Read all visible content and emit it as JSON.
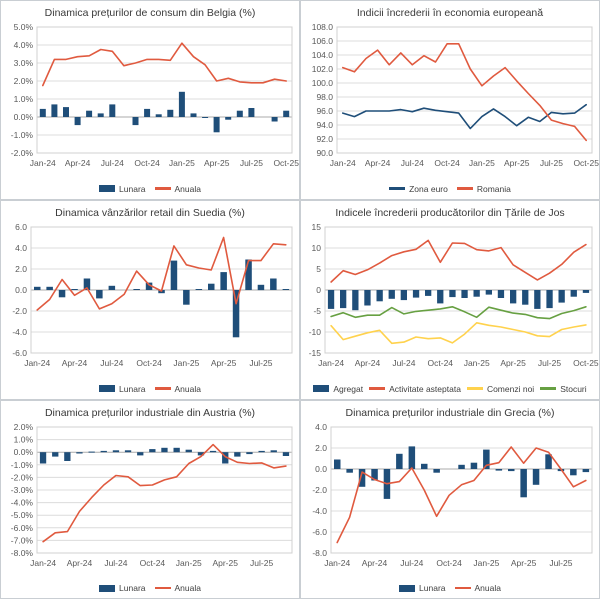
{
  "page": {
    "background": "#ffffff"
  },
  "colors": {
    "bar_blue": "#1F4E79",
    "line_orange": "#E05A3F",
    "line_yellow": "#FFD24D",
    "line_green": "#67A042",
    "line_navy": "#1F4E79",
    "grid": "#DCDCDC",
    "zero_line": "#ABABAB",
    "plot_border": "#D0D0D0",
    "axis_text": "#595959",
    "title_text": "#3A3A3A"
  },
  "chart_data": [
    {
      "type": "bar",
      "title": "Dinamica prețurilor de consum din Belgia (%)",
      "categories": [
        "Jan-24",
        "Feb-24",
        "Mar-24",
        "Apr-24",
        "May-24",
        "Jun-24",
        "Jul-24",
        "Aug-24",
        "Sep-24",
        "Oct-24",
        "Nov-24",
        "Dec-24",
        "Jan-25",
        "Feb-25",
        "Mar-25",
        "Apr-25",
        "May-25",
        "Jun-25",
        "Jul-25",
        "Aug-25",
        "Sep-25",
        "Oct-25"
      ],
      "xticks_every": 3,
      "ylim": [
        -2,
        5
      ],
      "ystep": 1,
      "yfmt": "pct1",
      "ylabel_width": 28,
      "grid": true,
      "legend_position": "bottom",
      "series": [
        {
          "name": "Lunara",
          "type": "bar",
          "color_key": "bar_blue",
          "values": [
            0.45,
            0.7,
            0.55,
            -0.45,
            0.35,
            0.2,
            0.7,
            0.0,
            -0.45,
            0.45,
            0.15,
            0.4,
            1.4,
            0.2,
            -0.05,
            -0.85,
            -0.15,
            0.35,
            0.5,
            0.0,
            -0.25,
            0.35
          ]
        },
        {
          "name": "Anuala",
          "type": "line",
          "color_key": "line_orange",
          "values": [
            1.75,
            3.2,
            3.2,
            3.35,
            3.4,
            3.75,
            3.65,
            2.85,
            3.0,
            3.2,
            3.2,
            3.15,
            4.1,
            3.35,
            2.9,
            2.0,
            2.15,
            1.95,
            1.9,
            1.9,
            2.1,
            2.0
          ]
        }
      ]
    },
    {
      "type": "line",
      "title": "Indicii încrederii în economia europeană",
      "categories": [
        "Jan-24",
        "Feb-24",
        "Mar-24",
        "Apr-24",
        "May-24",
        "Jun-24",
        "Jul-24",
        "Aug-24",
        "Sep-24",
        "Oct-24",
        "Nov-24",
        "Dec-24",
        "Jan-25",
        "Feb-25",
        "Mar-25",
        "Apr-25",
        "May-25",
        "Jun-25",
        "Jul-25",
        "Aug-25",
        "Sep-25",
        "Oct-25"
      ],
      "xticks_every": 3,
      "ylim": [
        90,
        108
      ],
      "ystep": 2,
      "yfmt": "dec1",
      "ylabel_width": 28,
      "grid": true,
      "legend_position": "bottom",
      "series": [
        {
          "name": "Zona euro",
          "type": "line",
          "color_key": "line_navy",
          "values": [
            95.7,
            95.2,
            96.0,
            96.0,
            96.0,
            96.2,
            95.9,
            96.4,
            96.1,
            95.9,
            95.7,
            93.5,
            95.2,
            96.3,
            95.2,
            93.9,
            95.1,
            94.5,
            95.8,
            95.6,
            95.7,
            96.9
          ]
        },
        {
          "name": "Romania",
          "type": "line",
          "color_key": "line_orange",
          "values": [
            102.2,
            101.6,
            103.5,
            104.7,
            102.6,
            104.3,
            102.6,
            103.9,
            103.0,
            105.6,
            105.6,
            102.0,
            99.6,
            101.0,
            102.2,
            100.3,
            98.5,
            96.8,
            94.7,
            94.2,
            93.8,
            91.8
          ]
        }
      ]
    },
    {
      "type": "bar",
      "title": "Dinamica vânzărilor retail din Suedia (%)",
      "categories": [
        "Jan-24",
        "Feb-24",
        "Mar-24",
        "Apr-24",
        "May-24",
        "Jun-24",
        "Jul-24",
        "Aug-24",
        "Sep-24",
        "Oct-24",
        "Nov-24",
        "Dec-24",
        "Jan-25",
        "Feb-25",
        "Mar-25",
        "Apr-25",
        "May-25",
        "Jun-25",
        "Jul-25",
        "Aug-25",
        "Sep-25"
      ],
      "xticks_every": 3,
      "ylim": [
        -6,
        6
      ],
      "ystep": 2,
      "yfmt": "dec1",
      "ylabel_width": 22,
      "grid": true,
      "legend_position": "bottom",
      "series": [
        {
          "name": "Lunara",
          "type": "bar",
          "color_key": "bar_blue",
          "values": [
            0.3,
            0.3,
            -0.7,
            0.1,
            1.1,
            -0.8,
            0.4,
            0.0,
            0.1,
            0.7,
            -0.3,
            2.8,
            -1.4,
            0.1,
            0.6,
            1.7,
            -4.5,
            2.9,
            0.5,
            1.1,
            0.1
          ]
        },
        {
          "name": "Anuala",
          "type": "line",
          "color_key": "line_orange",
          "values": [
            -1.9,
            -0.9,
            1.0,
            -0.5,
            0.2,
            -1.8,
            -1.3,
            -0.4,
            1.8,
            0.5,
            -0.1,
            4.2,
            2.4,
            2.1,
            1.9,
            5.0,
            -1.3,
            2.8,
            2.8,
            4.4,
            4.3
          ]
        }
      ]
    },
    {
      "type": "bar",
      "title": "Indicele încrederii producătorilor din Țările de Jos",
      "categories": [
        "Jan-24",
        "Feb-24",
        "Mar-24",
        "Apr-24",
        "May-24",
        "Jun-24",
        "Jul-24",
        "Aug-24",
        "Sep-24",
        "Oct-24",
        "Nov-24",
        "Dec-24",
        "Jan-25",
        "Feb-25",
        "Mar-25",
        "Apr-25",
        "May-25",
        "Jun-25",
        "Jul-25",
        "Aug-25",
        "Sep-25",
        "Oct-25"
      ],
      "xticks_every": 3,
      "ylim": [
        -15,
        15
      ],
      "ystep": 5,
      "yfmt": "int",
      "ylabel_width": 16,
      "grid": true,
      "legend_position": "bottom",
      "series": [
        {
          "name": "Agregat",
          "type": "bar",
          "color_key": "bar_blue",
          "values": [
            -4.5,
            -4.3,
            -4.8,
            -3.7,
            -2.7,
            -2.1,
            -2.4,
            -1.8,
            -1.4,
            -3.2,
            -1.7,
            -1.9,
            -1.6,
            -1.1,
            -1.9,
            -3.2,
            -3.5,
            -4.5,
            -4.3,
            -3.0,
            -1.6,
            -0.7
          ]
        },
        {
          "name": "Activitate asteptata",
          "type": "line",
          "color_key": "line_orange",
          "values": [
            1.9,
            4.6,
            3.7,
            4.8,
            6.4,
            8.2,
            9.1,
            9.7,
            11.8,
            6.6,
            11.2,
            11.1,
            9.6,
            9.3,
            10.1,
            6.0,
            4.2,
            2.4,
            4.0,
            6.1,
            9.0,
            10.8
          ]
        },
        {
          "name": "Comenzi noi",
          "type": "line",
          "color_key": "line_yellow",
          "values": [
            -8.5,
            -11.8,
            -11.0,
            -10.2,
            -9.6,
            -12.7,
            -12.4,
            -11.2,
            -11.6,
            -11.4,
            -12.6,
            -10.5,
            -7.8,
            -8.4,
            -8.8,
            -9.4,
            -10.0,
            -10.9,
            -11.1,
            -9.4,
            -8.8,
            -8.3
          ]
        },
        {
          "name": "Stocuri",
          "type": "line",
          "color_key": "line_green",
          "values": [
            -6.3,
            -5.4,
            -6.5,
            -6.0,
            -6.0,
            -4.2,
            -5.7,
            -5.1,
            -4.8,
            -4.5,
            -4.0,
            -5.2,
            -6.5,
            -4.1,
            -4.8,
            -5.5,
            -5.8,
            -6.6,
            -6.8,
            -5.6,
            -4.9,
            -4.0
          ]
        }
      ]
    },
    {
      "type": "bar",
      "title": "Dinamica prețurilor industriale din Austria (%)",
      "categories": [
        "Jan-24",
        "Feb-24",
        "Mar-24",
        "Apr-24",
        "May-24",
        "Jun-24",
        "Jul-24",
        "Aug-24",
        "Sep-24",
        "Oct-24",
        "Nov-24",
        "Dec-24",
        "Jan-25",
        "Feb-25",
        "Mar-25",
        "Apr-25",
        "May-25",
        "Jun-25",
        "Jul-25",
        "Aug-25",
        "Sep-25"
      ],
      "xticks_every": 3,
      "ylim": [
        -8,
        2
      ],
      "ystep": 1,
      "yfmt": "pct1",
      "ylabel_width": 28,
      "grid": true,
      "legend_position": "bottom",
      "series": [
        {
          "name": "Lunara",
          "type": "bar",
          "color_key": "bar_blue",
          "values": [
            -0.9,
            -0.35,
            -0.7,
            -0.1,
            0.05,
            0.1,
            0.15,
            0.15,
            -0.25,
            0.25,
            0.35,
            0.35,
            0.2,
            -0.25,
            0.1,
            -0.9,
            -0.35,
            -0.15,
            0.1,
            0.15,
            -0.3
          ]
        },
        {
          "name": "Anuala",
          "type": "line",
          "color_key": "line_orange",
          "values": [
            -7.1,
            -6.4,
            -6.3,
            -4.7,
            -3.6,
            -2.6,
            -1.85,
            -1.95,
            -2.65,
            -2.6,
            -2.2,
            -1.95,
            -0.9,
            -0.35,
            0.6,
            -0.35,
            -0.8,
            -0.9,
            -0.85,
            -1.25,
            -1.1
          ]
        }
      ]
    },
    {
      "type": "bar",
      "title": "Dinamica prețurilor industriale din Grecia (%)",
      "categories": [
        "Jan-24",
        "Feb-24",
        "Mar-24",
        "Apr-24",
        "May-24",
        "Jun-24",
        "Jul-24",
        "Aug-24",
        "Sep-24",
        "Oct-24",
        "Nov-24",
        "Dec-24",
        "Jan-25",
        "Feb-25",
        "Mar-25",
        "Apr-25",
        "May-25",
        "Jun-25",
        "Jul-25",
        "Aug-25",
        "Sep-25"
      ],
      "xticks_every": 3,
      "ylim": [
        -8,
        4
      ],
      "ystep": 2,
      "yfmt": "dec1",
      "ylabel_width": 22,
      "grid": true,
      "legend_position": "bottom",
      "series": [
        {
          "name": "Lunara",
          "type": "bar",
          "color_key": "bar_blue",
          "values": [
            0.9,
            -0.35,
            -1.7,
            -1.1,
            -2.85,
            1.45,
            2.15,
            0.5,
            -0.35,
            0.0,
            0.4,
            0.6,
            1.85,
            -0.15,
            -0.2,
            -2.7,
            -1.5,
            1.4,
            -0.2,
            -0.6,
            -0.3
          ]
        },
        {
          "name": "Anuala",
          "type": "line",
          "color_key": "line_orange",
          "values": [
            -7.0,
            -4.6,
            -0.3,
            -1.0,
            -1.4,
            -1.2,
            0.1,
            -2.0,
            -4.5,
            -2.5,
            -1.5,
            -1.1,
            0.35,
            0.6,
            2.1,
            0.55,
            2.0,
            1.6,
            0.0,
            -1.7,
            -1.1
          ]
        }
      ]
    }
  ]
}
